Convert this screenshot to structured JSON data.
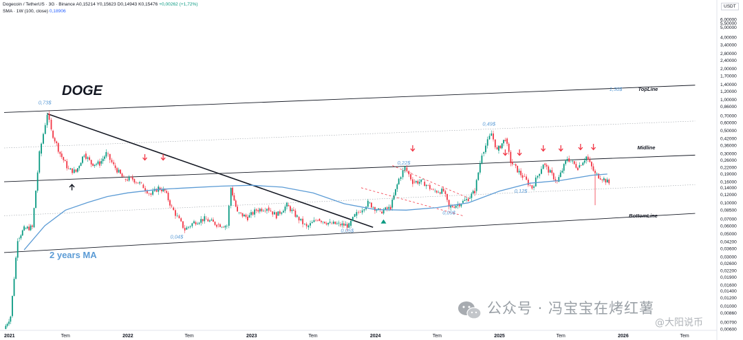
{
  "header": {
    "symbol": "Dogecoin / TetherUS · 3G · Binance",
    "ohlc": [
      {
        "k": "A",
        "v": "0,15214"
      },
      {
        "k": "Y",
        "v": "0,15623"
      },
      {
        "k": "D",
        "v": "0,14943"
      },
      {
        "k": "K",
        "v": "0,15476"
      }
    ],
    "change": "+0,00262 (+1,72%)",
    "sma_label": "SMA · 1W (100, close)",
    "sma_value": "0,18906"
  },
  "axis": {
    "unit": "USDT",
    "y_ticks": [
      "6,00000",
      "5,50000",
      "5,00000",
      "4,00000",
      "3,40000",
      "2,80000",
      "2,40000",
      "2,00000",
      "1,70000",
      "1,40000",
      "1,20000",
      "1,00000",
      "0,86000",
      "0,70000",
      "0,60000",
      "0,50000",
      "0,42000",
      "0,36000",
      "0,30000",
      "0,26000",
      "0,22000",
      "0,19000",
      "0,16000",
      "0,14000",
      "0,12000",
      "0,10000",
      "0,08500",
      "0,07000",
      "0,06000",
      "0,05000",
      "0,04200",
      "0,03600",
      "0,03000",
      "0,02600",
      "0,02200",
      "0,01900",
      "0,01600",
      "0,01400",
      "0,01200",
      "0,01000",
      "0,00860",
      "0,00700",
      "0,00600"
    ],
    "x_ticks": [
      "2021",
      "Tem",
      "2022",
      "Tem",
      "2023",
      "Tem",
      "2024",
      "Tem",
      "2025",
      "Tem",
      "2026",
      "Tem"
    ]
  },
  "annotations": {
    "title": "DOGE",
    "ma_label": "2 years MA",
    "price_labels": [
      "0,73$",
      "0,04$",
      "0,05$",
      "0,22$",
      "0,09$",
      "0,49$",
      "0,12$",
      "1,30$"
    ],
    "line_labels": [
      "TopLine",
      "Midline",
      "BottomLine"
    ]
  },
  "watermark": {
    "main": "公众号 · 冯宝宝在烤红薯",
    "secondary": "@大阳说币"
  },
  "colors": {
    "up": "#089981",
    "down": "#f23645",
    "ma": "#5b9bd5",
    "label": "#5b9bd5",
    "channel": "#131722",
    "text": "#131722",
    "axis_text": "#131722"
  },
  "chart_data": {
    "type": "line",
    "title": "DOGE",
    "y_scale": "log",
    "ylim": [
      0.006,
      6.0
    ],
    "xlim": [
      "2021-01-01",
      "2026-09-30"
    ],
    "series": [
      {
        "name": "Dogecoin / TetherUS",
        "points": [
          [
            "2021-01-01",
            0.006
          ],
          [
            "2021-01-20",
            0.008
          ],
          [
            "2021-02-10",
            0.045
          ],
          [
            "2021-03-01",
            0.056
          ],
          [
            "2021-03-25",
            0.058
          ],
          [
            "2021-04-15",
            0.3
          ],
          [
            "2021-05-08",
            0.73
          ],
          [
            "2021-05-20",
            0.5
          ],
          [
            "2021-06-15",
            0.3
          ],
          [
            "2021-07-10",
            0.21
          ],
          [
            "2021-08-01",
            0.2
          ],
          [
            "2021-08-25",
            0.3
          ],
          [
            "2021-09-15",
            0.24
          ],
          [
            "2021-10-10",
            0.24
          ],
          [
            "2021-10-29",
            0.3
          ],
          [
            "2021-11-20",
            0.23
          ],
          [
            "2021-12-20",
            0.17
          ],
          [
            "2022-01-15",
            0.17
          ],
          [
            "2022-02-10",
            0.15
          ],
          [
            "2022-03-10",
            0.12
          ],
          [
            "2022-04-01",
            0.14
          ],
          [
            "2022-04-20",
            0.13
          ],
          [
            "2022-05-10",
            0.09
          ],
          [
            "2022-06-18",
            0.055
          ],
          [
            "2022-07-15",
            0.065
          ],
          [
            "2022-08-15",
            0.07
          ],
          [
            "2022-09-20",
            0.062
          ],
          [
            "2022-10-20",
            0.06
          ],
          [
            "2022-11-01",
            0.14
          ],
          [
            "2022-11-20",
            0.08
          ],
          [
            "2022-12-20",
            0.072
          ],
          [
            "2023-01-15",
            0.085
          ],
          [
            "2023-02-15",
            0.09
          ],
          [
            "2023-03-15",
            0.075
          ],
          [
            "2023-04-15",
            0.095
          ],
          [
            "2023-05-15",
            0.073
          ],
          [
            "2023-06-12",
            0.058
          ],
          [
            "2023-07-15",
            0.07
          ],
          [
            "2023-08-20",
            0.063
          ],
          [
            "2023-09-15",
            0.062
          ],
          [
            "2023-10-15",
            0.06
          ],
          [
            "2023-11-01",
            0.075
          ],
          [
            "2023-12-10",
            0.1
          ],
          [
            "2024-01-15",
            0.082
          ],
          [
            "2024-02-15",
            0.09
          ],
          [
            "2024-03-10",
            0.17
          ],
          [
            "2024-03-28",
            0.22
          ],
          [
            "2024-04-20",
            0.16
          ],
          [
            "2024-05-20",
            0.16
          ],
          [
            "2024-06-20",
            0.13
          ],
          [
            "2024-07-20",
            0.13
          ],
          [
            "2024-08-05",
            0.09
          ],
          [
            "2024-09-10",
            0.1
          ],
          [
            "2024-10-01",
            0.11
          ],
          [
            "2024-10-20",
            0.13
          ],
          [
            "2024-11-10",
            0.3
          ],
          [
            "2024-12-08",
            0.47
          ],
          [
            "2024-12-25",
            0.32
          ],
          [
            "2025-01-18",
            0.42
          ],
          [
            "2025-02-03",
            0.25
          ],
          [
            "2025-03-10",
            0.18
          ],
          [
            "2025-04-07",
            0.14
          ],
          [
            "2025-05-10",
            0.24
          ],
          [
            "2025-06-20",
            0.16
          ],
          [
            "2025-07-20",
            0.27
          ],
          [
            "2025-08-20",
            0.22
          ],
          [
            "2025-09-14",
            0.28
          ],
          [
            "2025-10-10",
            0.19
          ],
          [
            "2025-11-05",
            0.17
          ],
          [
            "2025-11-20",
            0.155
          ]
        ]
      },
      {
        "name": "2 years MA",
        "points": [
          [
            "2021-03-01",
            0.035
          ],
          [
            "2021-05-01",
            0.06
          ],
          [
            "2021-07-01",
            0.085
          ],
          [
            "2021-09-01",
            0.1
          ],
          [
            "2021-11-01",
            0.115
          ],
          [
            "2022-01-01",
            0.125
          ],
          [
            "2022-04-01",
            0.135
          ],
          [
            "2022-07-01",
            0.14
          ],
          [
            "2022-10-01",
            0.145
          ],
          [
            "2023-01-01",
            0.148
          ],
          [
            "2023-04-01",
            0.142
          ],
          [
            "2023-07-01",
            0.125
          ],
          [
            "2023-10-01",
            0.098
          ],
          [
            "2024-01-01",
            0.086
          ],
          [
            "2024-04-01",
            0.085
          ],
          [
            "2024-07-01",
            0.09
          ],
          [
            "2024-10-01",
            0.1
          ],
          [
            "2025-01-01",
            0.13
          ],
          [
            "2025-04-01",
            0.155
          ],
          [
            "2025-07-01",
            0.165
          ],
          [
            "2025-10-01",
            0.185
          ],
          [
            "2025-11-15",
            0.19
          ]
        ]
      }
    ]
  }
}
